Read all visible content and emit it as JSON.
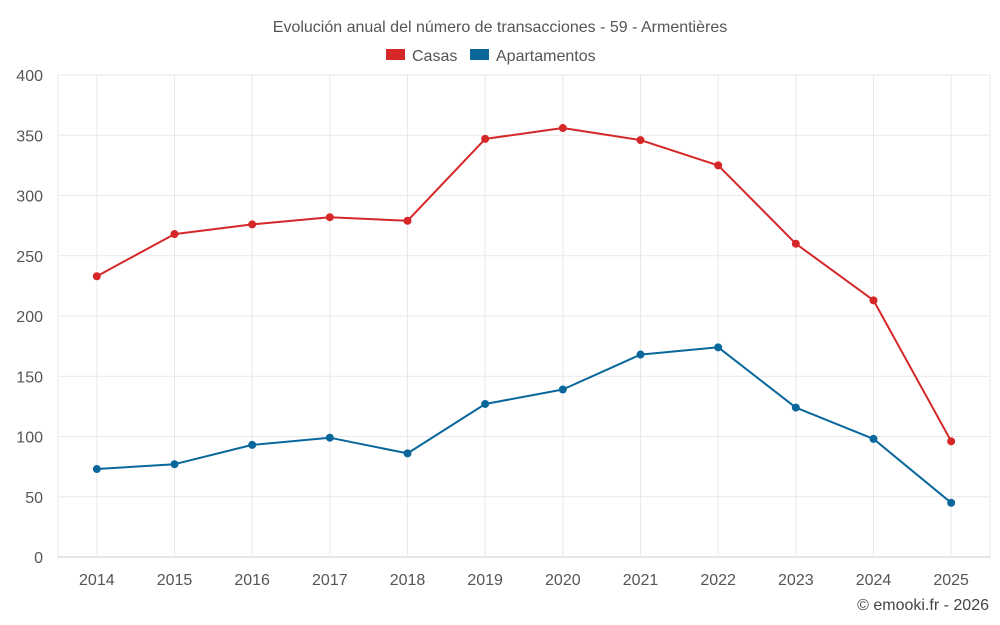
{
  "chart_data": {
    "type": "line",
    "title": "Evolución anual del número de transacciones - 59 - Armentières",
    "categories": [
      "2014",
      "2015",
      "2016",
      "2017",
      "2018",
      "2019",
      "2020",
      "2021",
      "2022",
      "2023",
      "2024",
      "2025"
    ],
    "series": [
      {
        "name": "Casas",
        "color": "#d62728",
        "values": [
          233,
          268,
          276,
          282,
          279,
          347,
          356,
          346,
          325,
          260,
          213,
          96
        ]
      },
      {
        "name": "Apartamentos",
        "color": "#09679b",
        "values": [
          73,
          77,
          93,
          99,
          86,
          127,
          139,
          168,
          174,
          124,
          98,
          45
        ]
      }
    ],
    "xlabel": "",
    "ylabel": "",
    "ylim": [
      0,
      400
    ],
    "yticks": [
      "0",
      "50",
      "100",
      "150",
      "200",
      "250",
      "300",
      "350",
      "400"
    ],
    "grid": true,
    "legend_position": "top-center",
    "credit": "© emooki.fr - 2026"
  }
}
